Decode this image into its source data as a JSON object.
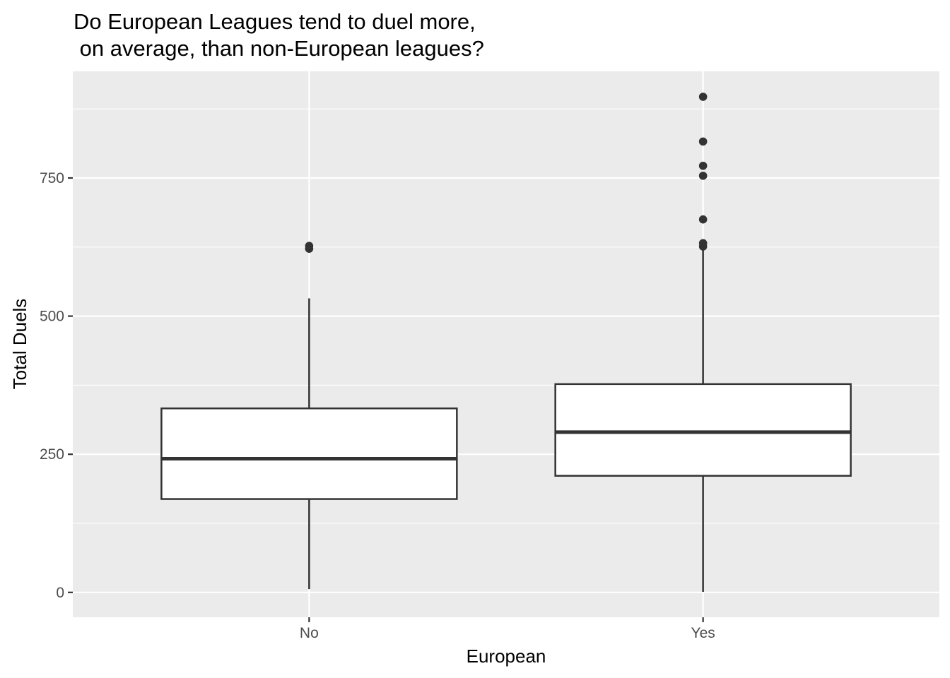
{
  "chart_data": {
    "type": "boxplot",
    "title_lines": [
      "Do European Leagues tend to duel more,",
      " on average, than non-European leagues?"
    ],
    "xlabel": "European",
    "ylabel": "Total Duels",
    "categories": [
      "No",
      "Yes"
    ],
    "y_ticks": [
      0,
      250,
      500,
      750
    ],
    "ylim": [
      -45,
      943
    ],
    "grid": true,
    "boxes": [
      {
        "category": "No",
        "whisker_low": 6,
        "q1": 169,
        "median": 242,
        "q3": 333,
        "whisker_high": 532,
        "outliers": [
          622,
          627
        ]
      },
      {
        "category": "Yes",
        "whisker_low": 1,
        "q1": 211,
        "median": 290,
        "q3": 377,
        "whisker_high": 626,
        "outliers": [
          626,
          632,
          675,
          754,
          772,
          816,
          897
        ]
      }
    ]
  },
  "colors": {
    "panel": "#ebebeb",
    "grid": "#ffffff",
    "box_fill": "#ffffff",
    "box_line": "#333333",
    "tick": "#333333"
  }
}
